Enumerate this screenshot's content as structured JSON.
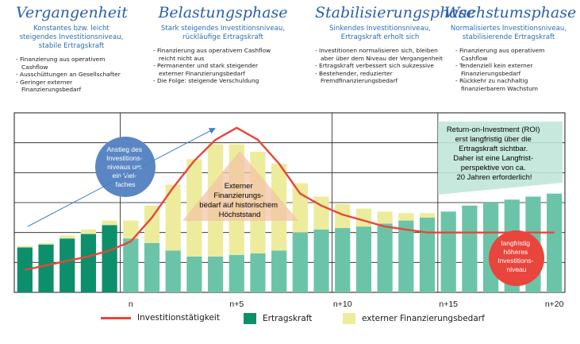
{
  "phases": [
    {
      "title": "Vergangenheit",
      "subtitle": "Konstantes bzw. leicht steigendes Investitionsniveau, stabile Ertragskraft",
      "bullets": [
        "Finanzierung aus operativem Cashflow",
        "Ausschüttungen an Gesellschafter",
        "Geringer externer Finanzierungsbedarf"
      ]
    },
    {
      "title": "Belastungsphase",
      "subtitle": "Stark steigendes Investitionsniveau, rückläufige Ertragskraft",
      "bullets": [
        "Finanzierung aus operativem Cashflow reicht nicht aus",
        "Permanenter und stark steigender externer Finanzierungsbedarf",
        "Die Folge: steigende Verschuldung"
      ]
    },
    {
      "title": "Stabilisierungsphase",
      "subtitle": "Sinkendes Investitionsniveau, Ertragskraft erholt sich",
      "bullets": [
        "Investitionen normalisieren sich, bleiben aber über dem Niveau der Vergangenheit",
        "Ertragskraft verbessert sich sukzessive",
        "Bestehender, reduzierter Fremdfinanzierungsbedarf"
      ]
    },
    {
      "title": "Wachstumsphase",
      "subtitle": "Normalisiertes Investitionsniveau, stabilisierende Ertragskraft",
      "bullets": [
        "Finanzierung aus operativem Cashflow",
        "Tendenziell kein externer Finanzierungsbedarf",
        "Rückkehr zu nachhaltig finanzierbarem Wachstum"
      ]
    }
  ],
  "annotations": {
    "circle_blue": "Anstieg des Investitions-niveaus um ein Viel-faches",
    "triangle": "Externer Finanzierungs-bedarf auf historischem Höchststand",
    "roi_box": "Return-on-Investment (ROI) erst langfristig über die Ertragskraft sichtbar. Daher ist eine Langfrist-perspektive von ca. 20 Jahren erforderlich!",
    "circle_red": "langfristig höheres Investitions-niveau"
  },
  "legend": {
    "investment": "Investitionstätigkeit",
    "earnings": "Ertragskraft",
    "external": "externer Finanzierungsbedarf"
  },
  "colors": {
    "earnings_dark": "#0e8f6c",
    "earnings_light": "#6cc4a8",
    "external": "#ecec9c",
    "investment_line": "#e8453c",
    "title_blue": "#2a5fa8",
    "circle_blue": "#5b86c4",
    "circle_red": "#e8453c",
    "triangle": "#f3c4a6",
    "roi_box": "#bfe6d8"
  },
  "chart_data": {
    "type": "bar",
    "x_labels": [
      "n",
      "n+5",
      "n+10",
      "n+15",
      "n+20"
    ],
    "x_label_periods": [
      0,
      5,
      10,
      15,
      20
    ],
    "periods": [
      -5,
      -4,
      -3,
      -2,
      -1,
      0,
      1,
      2,
      3,
      4,
      5,
      6,
      7,
      8,
      9,
      10,
      11,
      12,
      13,
      14,
      15,
      16,
      17,
      18,
      19,
      20
    ],
    "series": [
      {
        "name": "Ertragskraft",
        "values": [
          3.0,
          3.2,
          3.6,
          3.9,
          4.5,
          3.6,
          3.3,
          2.8,
          2.4,
          2.4,
          2.5,
          2.6,
          2.8,
          4.0,
          4.2,
          4.3,
          4.4,
          4.6,
          4.8,
          5.0,
          5.4,
          5.8,
          6.0,
          6.2,
          6.4,
          6.6
        ]
      },
      {
        "name": "externer Finanzierungsbedarf",
        "values": [
          0.1,
          0.1,
          0.2,
          0.3,
          0.3,
          1.2,
          2.5,
          4.4,
          6.5,
          7.5,
          7.4,
          6.8,
          5.8,
          3.3,
          2.2,
          1.6,
          1.2,
          0.8,
          0.5,
          0.3,
          0,
          0,
          0,
          0,
          0,
          0
        ]
      },
      {
        "name": "Investitionstätigkeit",
        "values": [
          1.5,
          1.8,
          2.1,
          2.4,
          2.8,
          3.4,
          5.0,
          7.0,
          8.8,
          10.2,
          11.0,
          10.2,
          8.6,
          6.6,
          5.8,
          5.2,
          4.8,
          4.4,
          4.2,
          4.0,
          4.0,
          4.0,
          4.0,
          4.0,
          4.0,
          4.0
        ]
      }
    ],
    "ylim": [
      0,
      12
    ],
    "dark_bar_periods_end": -1
  }
}
